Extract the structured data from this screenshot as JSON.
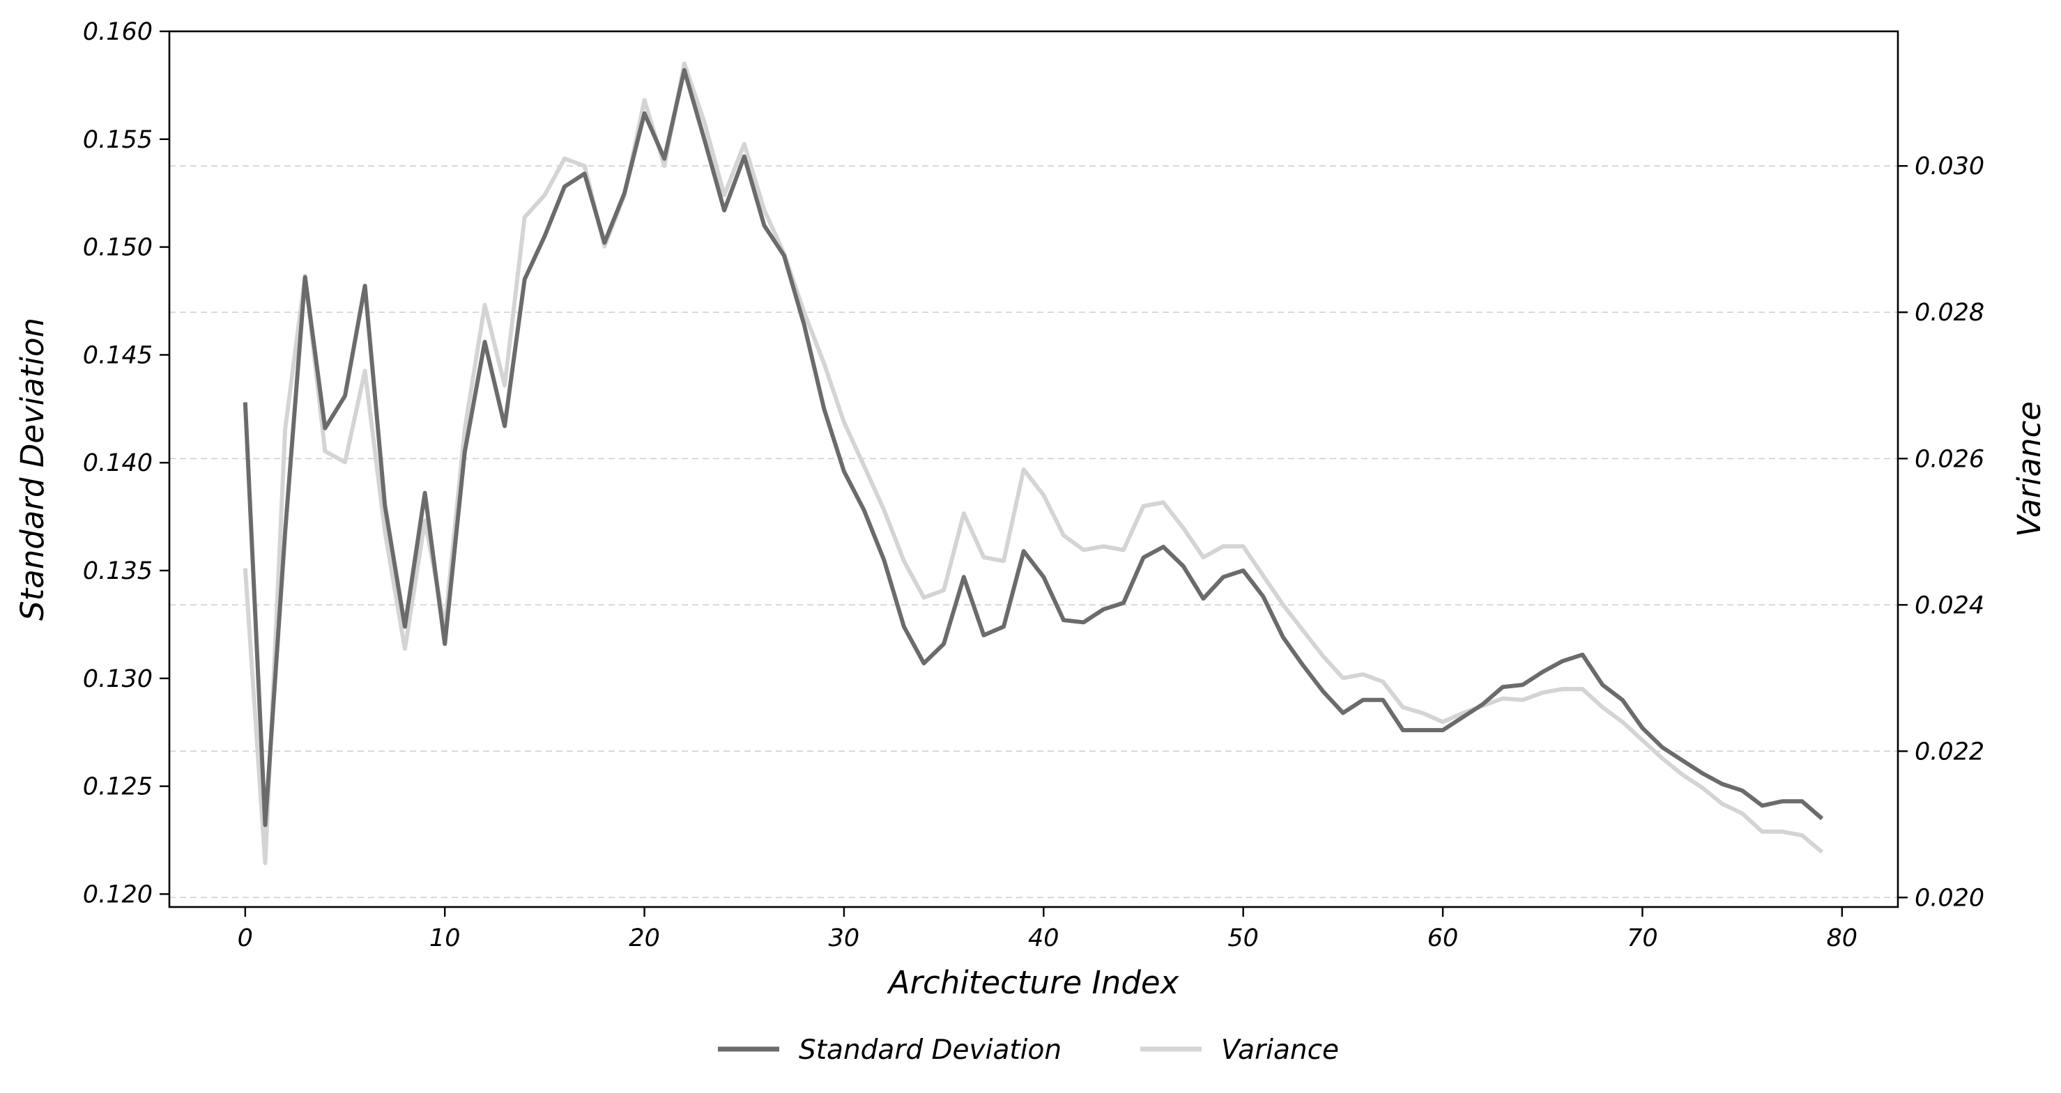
{
  "chart_data": {
    "type": "line",
    "xlabel": "Architecture Index",
    "ylabel": "Standard Deviation",
    "y2label": "Variance",
    "xlim": [
      -3.8,
      82.8
    ],
    "ylim": [
      0.1194,
      0.16
    ],
    "y2lim": [
      0.01987,
      0.03184
    ],
    "xticks": [
      0,
      10,
      20,
      30,
      40,
      50,
      60,
      70,
      80
    ],
    "yticks": [
      0.12,
      0.125,
      0.13,
      0.135,
      0.14,
      0.145,
      0.15,
      0.155,
      0.16
    ],
    "y2ticks": [
      0.02,
      0.022,
      0.024,
      0.026,
      0.028,
      0.03
    ],
    "xtick_labels": [
      "0",
      "10",
      "20",
      "30",
      "40",
      "50",
      "60",
      "70",
      "80"
    ],
    "ytick_labels": [
      "0.120",
      "0.125",
      "0.130",
      "0.135",
      "0.140",
      "0.145",
      "0.150",
      "0.155",
      "0.160"
    ],
    "y2tick_labels": [
      "0.020",
      "0.022",
      "0.024",
      "0.026",
      "0.028",
      "0.030"
    ],
    "grid": "horizontal dashed, right axis",
    "legend_position": "bottom-center",
    "series": [
      {
        "name": "Standard Deviation",
        "axis": "left",
        "color": "#6b6b6b",
        "values": [
          0.1428,
          0.1232,
          0.1368,
          0.1486,
          0.1416,
          0.1431,
          0.1482,
          0.138,
          0.1324,
          0.1386,
          0.1316,
          0.1405,
          0.1456,
          0.1417,
          0.1485,
          0.1505,
          0.1528,
          0.1534,
          0.1502,
          0.1525,
          0.1562,
          0.1541,
          0.1582,
          0.155,
          0.1517,
          0.1542,
          0.151,
          0.1496,
          0.1464,
          0.1425,
          0.1396,
          0.1378,
          0.1355,
          0.1324,
          0.1307,
          0.1316,
          0.1347,
          0.132,
          0.1324,
          0.1359,
          0.1347,
          0.1327,
          0.1326,
          0.1332,
          0.1335,
          0.1356,
          0.1361,
          0.1352,
          0.1337,
          0.1347,
          0.135,
          0.1338,
          0.1319,
          0.1306,
          0.1294,
          0.1284,
          0.129,
          0.129,
          0.1276,
          0.1276,
          0.1276,
          0.1282,
          0.1288,
          0.1296,
          0.1297,
          0.1303,
          0.1308,
          0.1311,
          0.1297,
          0.129,
          0.1277,
          0.1268,
          0.1262,
          0.1256,
          0.1251,
          0.1248,
          0.1241,
          0.1243,
          0.1243,
          0.1235
        ]
      },
      {
        "name": "Variance",
        "axis": "right",
        "color": "#d4d4d4",
        "values": [
          0.0245,
          0.02047,
          0.0264,
          0.0285,
          0.0261,
          0.02595,
          0.0272,
          0.025,
          0.0234,
          0.02515,
          0.0237,
          0.0264,
          0.0281,
          0.027,
          0.0293,
          0.0296,
          0.0301,
          0.03,
          0.0289,
          0.0296,
          0.0309,
          0.03,
          0.0314,
          0.0306,
          0.0296,
          0.0303,
          0.0294,
          0.0288,
          0.028,
          0.0273,
          0.0265,
          0.0259,
          0.0253,
          0.0246,
          0.0241,
          0.0242,
          0.02525,
          0.02465,
          0.0246,
          0.02585,
          0.0255,
          0.02495,
          0.02475,
          0.0248,
          0.02475,
          0.02535,
          0.0254,
          0.02505,
          0.02465,
          0.0248,
          0.0248,
          0.0244,
          0.024,
          0.02365,
          0.0233,
          0.023,
          0.02305,
          0.02295,
          0.0226,
          0.02252,
          0.0224,
          0.02252,
          0.02262,
          0.02272,
          0.0227,
          0.0228,
          0.02285,
          0.02285,
          0.0226,
          0.0224,
          0.02215,
          0.0219,
          0.02168,
          0.0215,
          0.02128,
          0.02115,
          0.0209,
          0.0209,
          0.02085,
          0.02062
        ]
      }
    ]
  }
}
